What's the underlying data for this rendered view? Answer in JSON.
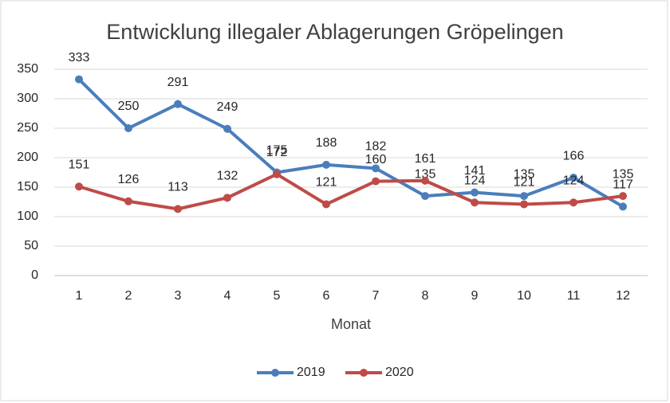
{
  "chart_data": {
    "type": "line",
    "title": "Entwicklung illegaler Ablagerungen Gröpelingen",
    "x_label": "Monat",
    "categories": [
      "1",
      "2",
      "3",
      "4",
      "5",
      "6",
      "7",
      "8",
      "9",
      "10",
      "11",
      "12"
    ],
    "series": [
      {
        "name": "2019",
        "color": "#4a7ebb",
        "values": [
          333,
          250,
          291,
          249,
          175,
          188,
          182,
          135,
          141,
          135,
          166,
          117
        ]
      },
      {
        "name": "2020",
        "color": "#be4b48",
        "values": [
          151,
          126,
          113,
          132,
          172,
          121,
          160,
          161,
          124,
          121,
          124,
          135
        ]
      }
    ],
    "ylim": [
      0,
      350
    ],
    "yticks": [
      0,
      50,
      100,
      150,
      200,
      250,
      300,
      350
    ],
    "grid": true,
    "legend": "bottom"
  }
}
